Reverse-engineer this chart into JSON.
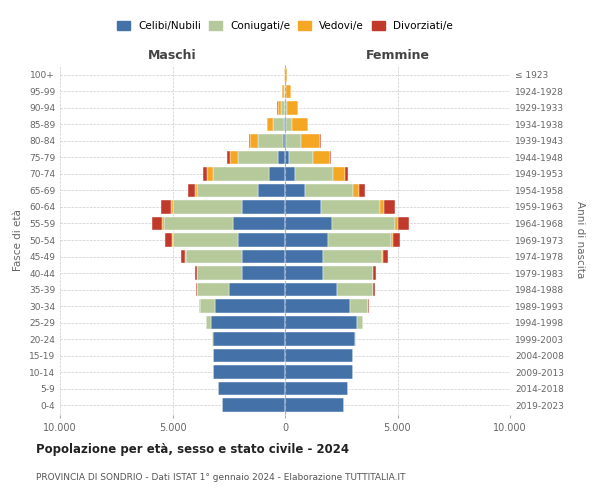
{
  "age_groups": [
    "0-4",
    "5-9",
    "10-14",
    "15-19",
    "20-24",
    "25-29",
    "30-34",
    "35-39",
    "40-44",
    "45-49",
    "50-54",
    "55-59",
    "60-64",
    "65-69",
    "70-74",
    "75-79",
    "80-84",
    "85-89",
    "90-94",
    "95-99",
    "100+"
  ],
  "birth_years": [
    "2019-2023",
    "2014-2018",
    "2009-2013",
    "2004-2008",
    "1999-2003",
    "1994-1998",
    "1989-1993",
    "1984-1988",
    "1979-1983",
    "1974-1978",
    "1969-1973",
    "1964-1968",
    "1959-1963",
    "1954-1958",
    "1949-1953",
    "1944-1948",
    "1939-1943",
    "1934-1938",
    "1929-1933",
    "1924-1928",
    "≤ 1923"
  ],
  "males": {
    "celibi": [
      2800,
      3000,
      3200,
      3200,
      3200,
      3300,
      3100,
      2500,
      1900,
      1900,
      2100,
      2300,
      1900,
      1200,
      700,
      300,
      100,
      50,
      20,
      5,
      2
    ],
    "coniugati": [
      0,
      0,
      0,
      10,
      40,
      200,
      700,
      1400,
      2000,
      2500,
      2900,
      3100,
      3100,
      2700,
      2500,
      1800,
      1100,
      500,
      180,
      60,
      10
    ],
    "vedovi": [
      0,
      0,
      0,
      0,
      0,
      0,
      5,
      10,
      20,
      30,
      40,
      60,
      80,
      120,
      250,
      350,
      350,
      250,
      130,
      70,
      25
    ],
    "divorziati": [
      0,
      0,
      0,
      0,
      5,
      10,
      20,
      50,
      100,
      180,
      280,
      450,
      450,
      280,
      200,
      120,
      50,
      20,
      8,
      3,
      1
    ]
  },
  "females": {
    "nubili": [
      2600,
      2800,
      3000,
      3000,
      3100,
      3200,
      2900,
      2300,
      1700,
      1700,
      1900,
      2100,
      1600,
      900,
      450,
      160,
      60,
      25,
      8,
      2,
      1
    ],
    "coniugate": [
      0,
      0,
      0,
      10,
      60,
      250,
      800,
      1600,
      2200,
      2600,
      2800,
      2800,
      2600,
      2100,
      1700,
      1100,
      650,
      280,
      90,
      25,
      5
    ],
    "vedove": [
      0,
      0,
      0,
      0,
      0,
      5,
      10,
      15,
      30,
      50,
      90,
      130,
      180,
      280,
      500,
      720,
      850,
      720,
      480,
      220,
      70
    ],
    "divorziate": [
      0,
      0,
      0,
      0,
      5,
      15,
      30,
      70,
      130,
      220,
      340,
      480,
      500,
      280,
      160,
      70,
      25,
      8,
      3,
      1,
      0
    ]
  },
  "colors": {
    "celibi": "#4472a8",
    "coniugati": "#b5c99a",
    "vedovi": "#f5a623",
    "divorziati": "#c0392b"
  },
  "legend_labels": [
    "Celibi/Nubili",
    "Coniugati/e",
    "Vedovi/e",
    "Divorziati/e"
  ],
  "title": "Popolazione per età, sesso e stato civile - 2024",
  "subtitle": "PROVINCIA DI SONDRIO - Dati ISTAT 1° gennaio 2024 - Elaborazione TUTTITALIA.IT",
  "xlabel_left": "Maschi",
  "xlabel_right": "Femmine",
  "ylabel_left": "Fasce di età",
  "ylabel_right": "Anni di nascita",
  "xlim": 10000,
  "background_color": "#ffffff"
}
